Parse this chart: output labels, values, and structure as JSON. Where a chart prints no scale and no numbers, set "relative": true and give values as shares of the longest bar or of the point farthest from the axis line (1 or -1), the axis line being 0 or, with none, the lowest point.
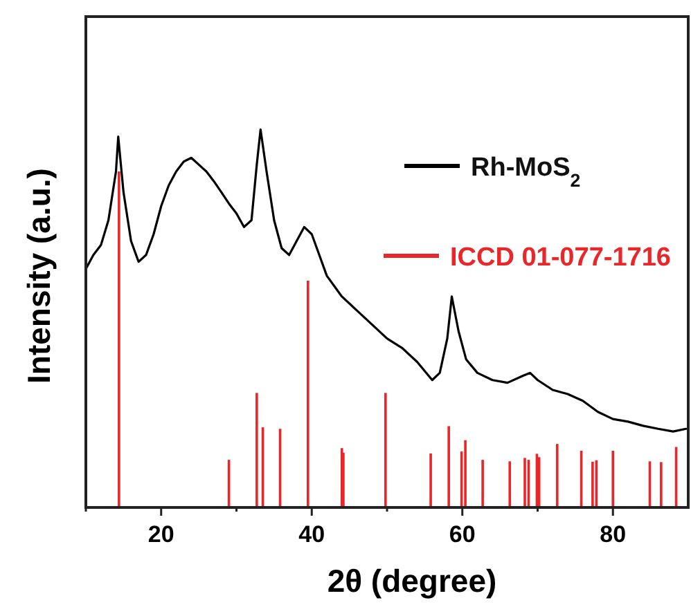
{
  "chart_data": {
    "type": "line",
    "relative": true,
    "xlabel": "2θ (degree)",
    "ylabel": "Intensity (a.u.)",
    "xlim": [
      10,
      90
    ],
    "xticks": [
      {
        "value": 10,
        "label": null
      },
      20,
      {
        "value": 30,
        "label": null
      },
      40,
      {
        "value": 50,
        "label": null
      },
      60,
      {
        "value": 70,
        "label": null
      },
      80
    ],
    "tick_labels": "x",
    "legend": "right",
    "grid": false,
    "series": [
      {
        "name": "Rh-MoS$_{2}$",
        "color": "#000000",
        "x": [
          10,
          11,
          12,
          13,
          14,
          14.3,
          15,
          16,
          17,
          18,
          19,
          20,
          21,
          22,
          23,
          24,
          25,
          26,
          27,
          28,
          29,
          30,
          31,
          32,
          32.7,
          33.2,
          34,
          35,
          36,
          37,
          38,
          39,
          40,
          41,
          42,
          44,
          46,
          48,
          50,
          52,
          54,
          56,
          57,
          58,
          58.6,
          59.5,
          60.5,
          62,
          64,
          66,
          68,
          69,
          70,
          72,
          74,
          76,
          78,
          80,
          82,
          84,
          86,
          88,
          89.7
        ],
        "values": [
          0.631,
          0.668,
          0.694,
          0.76,
          0.889,
          0.981,
          0.834,
          0.705,
          0.65,
          0.668,
          0.723,
          0.797,
          0.852,
          0.889,
          0.915,
          0.925,
          0.907,
          0.889,
          0.863,
          0.834,
          0.804,
          0.778,
          0.742,
          0.76,
          0.907,
          1,
          0.889,
          0.76,
          0.686,
          0.668,
          0.705,
          0.742,
          0.723,
          0.668,
          0.613,
          0.558,
          0.521,
          0.484,
          0.447,
          0.422,
          0.385,
          0.337,
          0.356,
          0.447,
          0.558,
          0.466,
          0.392,
          0.356,
          0.337,
          0.33,
          0.348,
          0.356,
          0.337,
          0.311,
          0.3,
          0.282,
          0.253,
          0.234,
          0.227,
          0.216,
          0.208,
          0.201,
          0.208
        ]
      },
      {
        "name": "ICCD 01-077-1716",
        "color": "#e8272a",
        "type": "bar",
        "x": [
          14.4,
          29.0,
          32.7,
          33.5,
          35.8,
          39.5,
          44.0,
          44.2,
          49.8,
          55.8,
          58.2,
          59.9,
          60.4,
          62.7,
          66.3,
          68.3,
          68.8,
          69.9,
          70.2,
          72.6,
          75.8,
          77.3,
          77.8,
          80.0,
          84.9,
          86.4,
          88.4
        ],
        "values": [
          0.889,
          0.126,
          0.303,
          0.212,
          0.208,
          0.6,
          0.157,
          0.145,
          0.303,
          0.143,
          0.215,
          0.148,
          0.178,
          0.126,
          0.122,
          0.131,
          0.126,
          0.142,
          0.133,
          0.168,
          0.15,
          0.121,
          0.125,
          0.15,
          0.122,
          0.12,
          0.16
        ]
      }
    ]
  }
}
